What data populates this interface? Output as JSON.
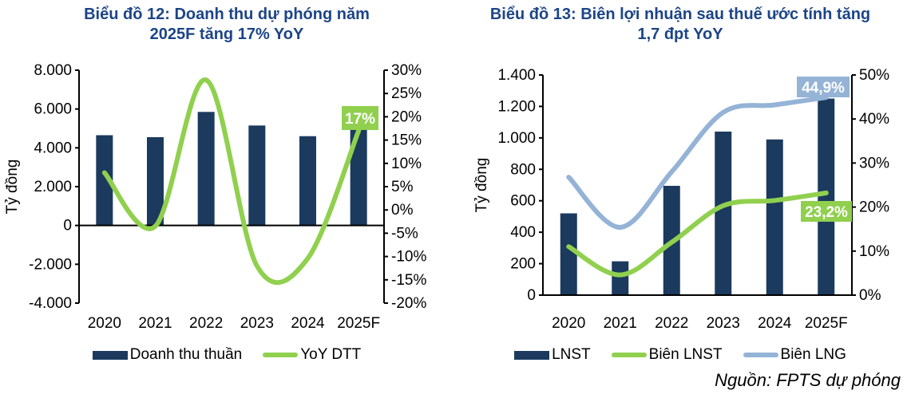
{
  "source_note": "Nguồn: FPTS dự phóng",
  "colors": {
    "navy": "#1B3A5E",
    "green": "#90D04E",
    "light_blue": "#94B3D6",
    "title_blue": "#1C4587",
    "axis_black": "#000000",
    "callout_text": "#FFFFFF"
  },
  "chart_data": [
    {
      "type": "bar",
      "title": "Biểu đồ 12: Doanh thu dự phóng năm 2025F tăng 17% YoY",
      "y_axis_label": "Tỷ đồng",
      "categories": [
        "2020",
        "2021",
        "2022",
        "2023",
        "2024",
        "2025F"
      ],
      "baseline": 0,
      "left_axis": {
        "min": -4000,
        "max": 8000,
        "ticks": [
          "8.000",
          "6.000",
          "4.000",
          "2.000",
          "0",
          "-2.000",
          "-4.000"
        ]
      },
      "right_axis": {
        "min": -20,
        "max": 30,
        "ticks": [
          "30%",
          "25%",
          "20%",
          "15%",
          "10%",
          "5%",
          "0%",
          "-5%",
          "-10%",
          "-15%",
          "-20%"
        ]
      },
      "series": [
        {
          "name": "Doanh thu thuần",
          "type": "bar",
          "axis": "left",
          "color": "#1B3A5E",
          "values": [
            4650,
            4550,
            5850,
            5150,
            4600,
            5380
          ]
        },
        {
          "name": "YoY DTT",
          "type": "line",
          "axis": "right",
          "color": "#90D04E",
          "values": [
            8,
            -3.5,
            27.9,
            -12,
            -10.4,
            17
          ]
        }
      ],
      "annotations": [
        {
          "text": "17%",
          "color": "#90D04E",
          "series": "YoY DTT",
          "index": 5,
          "value": "17%"
        }
      ],
      "legend_position": "bottom",
      "grid": false
    },
    {
      "type": "bar",
      "title": "Biểu đồ 13: Biên lợi nhuận sau thuế ước tính tăng 1,7 đpt YoY",
      "y_axis_label": "Tỷ đồng",
      "categories": [
        "2020",
        "2021",
        "2022",
        "2023",
        "2024",
        "2025F"
      ],
      "baseline": 0,
      "left_axis": {
        "min": 0,
        "max": 1400,
        "ticks": [
          "1.400",
          "1.200",
          "1.000",
          "800",
          "600",
          "400",
          "200",
          "0"
        ]
      },
      "right_axis": {
        "min": 0,
        "max": 50,
        "ticks": [
          "50%",
          "40%",
          "30%",
          "20%",
          "10%",
          "0%"
        ]
      },
      "series": [
        {
          "name": "LNST",
          "type": "bar",
          "axis": "left",
          "color": "#1B3A5E",
          "values": [
            520,
            215,
            695,
            1040,
            990,
            1250
          ]
        },
        {
          "name": "Biên LNST",
          "type": "line",
          "axis": "right",
          "color": "#90D04E",
          "values": [
            11,
            4.6,
            12,
            20.3,
            21.5,
            23.2
          ]
        },
        {
          "name": "Biên LNG",
          "type": "line",
          "axis": "right",
          "color": "#94B3D6",
          "values": [
            26.8,
            15.4,
            28,
            41.5,
            43.2,
            44.9
          ]
        }
      ],
      "annotations": [
        {
          "text": "44,9%",
          "color": "#94B3D6",
          "series": "Biên LNG",
          "index": 5,
          "value": "44,9%"
        },
        {
          "text": "23,2%",
          "color": "#90D04E",
          "series": "Biên LNST",
          "index": 5,
          "value": "23,2%"
        }
      ],
      "legend_position": "bottom",
      "grid": false
    }
  ]
}
